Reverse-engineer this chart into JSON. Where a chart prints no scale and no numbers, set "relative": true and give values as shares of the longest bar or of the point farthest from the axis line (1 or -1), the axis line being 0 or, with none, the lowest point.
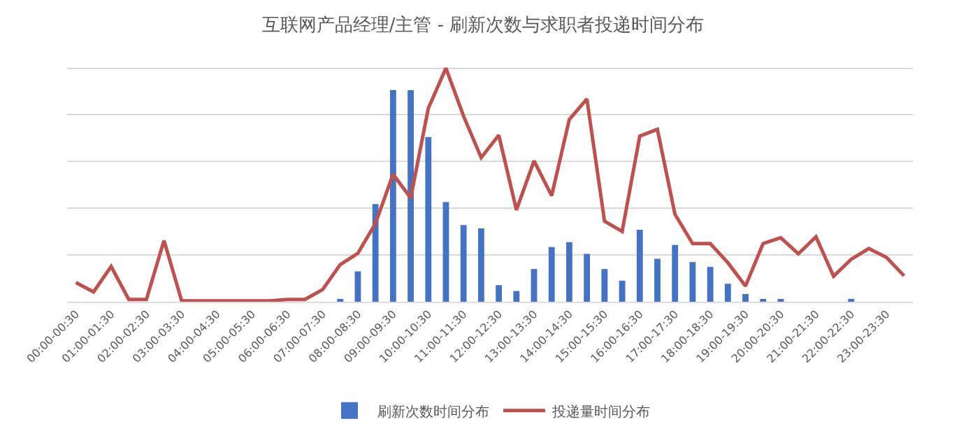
{
  "chart_data": {
    "type": "bar",
    "title": "互联网产品经理/主管 - 刷新次数与求职者投递时间分布",
    "relative": true,
    "grid": "y",
    "legend": "bottom",
    "categories": [
      "00:00-00:30",
      null,
      "01:00-01:30",
      null,
      "02:00-02:30",
      null,
      "03:00-03:30",
      null,
      "04:00-04:30",
      null,
      "05:00-05:30",
      null,
      "06:00-06:30",
      null,
      "07:00-07:30",
      null,
      "08:00-08:30",
      null,
      "09:00-09:30",
      null,
      "10:00-10:30",
      null,
      "11:00-11:30",
      null,
      "12:00-12:30",
      null,
      "13:00-13:30",
      null,
      "14:00-14:30",
      null,
      "15:00-15:30",
      null,
      "16:00-16:30",
      null,
      "17:00-17:30",
      null,
      "18:00-18:30",
      null,
      "19:00-19:30",
      null,
      "20:00-20:30",
      null,
      "21:00-21:30",
      null,
      "22:00-22:30",
      null,
      "23:00-23:30",
      null
    ],
    "series": [
      {
        "name": "刷新次数时间分布",
        "color": "#4472c4",
        "values": [
          null,
          null,
          null,
          null,
          null,
          null,
          null,
          null,
          null,
          null,
          null,
          null,
          null,
          null,
          null,
          0.01,
          0.13,
          0.418,
          0.906,
          0.906,
          0.705,
          0.427,
          0.328,
          0.314,
          0.071,
          0.046,
          0.14,
          0.234,
          0.255,
          0.205,
          0.14,
          0.09,
          0.308,
          0.184,
          0.243,
          0.17,
          0.149,
          0.077,
          0.033,
          0.011,
          0.011,
          null,
          null,
          null,
          0.011,
          null,
          null,
          null
        ]
      },
      {
        "name": "投递量时间分布",
        "type": "line",
        "color": "#c0504d",
        "values": [
          0.082,
          0.042,
          0.151,
          0.01,
          0.01,
          0.262,
          0.004,
          0.004,
          0.004,
          0.004,
          0.004,
          0.004,
          0.01,
          0.01,
          0.052,
          0.159,
          0.207,
          0.335,
          0.546,
          0.444,
          0.828,
          1,
          0.795,
          0.617,
          0.713,
          0.393,
          0.603,
          0.454,
          0.78,
          0.868,
          0.345,
          0.301,
          0.709,
          0.738,
          0.374,
          0.249,
          0.249,
          0.167,
          0.067,
          0.249,
          0.274,
          0.205,
          0.278,
          0.109,
          0.182,
          0.228,
          0.19,
          0.111
        ]
      }
    ]
  }
}
